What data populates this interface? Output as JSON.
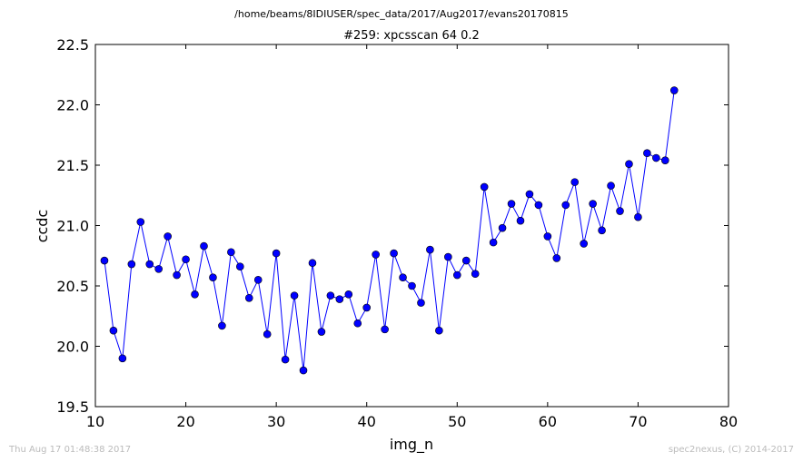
{
  "figure": {
    "suptitle": "/home/beams/8IDIUSER/spec_data/2017/Aug2017/evans20170815",
    "timestamp": "Thu Aug 17 01:48:38 2017",
    "credit": "spec2nexus, (C) 2014-2017"
  },
  "colors": {
    "line": "#0000ff",
    "marker": "#0000ff",
    "axes": "#000000",
    "footer": "#bbbbbb"
  },
  "chart_data": {
    "type": "line",
    "title": "#259: xpcsscan 64 0.2",
    "xlabel": "img_n",
    "ylabel": "ccdc",
    "xlim": [
      10,
      80
    ],
    "ylim": [
      19.5,
      22.5
    ],
    "xticks": [
      10,
      20,
      30,
      40,
      50,
      60,
      70,
      80
    ],
    "yticks": [
      19.5,
      20.0,
      20.5,
      21.0,
      21.5,
      22.0,
      22.5
    ],
    "xtick_labels": [
      "10",
      "20",
      "30",
      "40",
      "50",
      "60",
      "70",
      "80"
    ],
    "ytick_labels": [
      "19.5",
      "20.0",
      "20.5",
      "21.0",
      "21.5",
      "22.0",
      "22.5"
    ],
    "grid": false,
    "marker": "circle",
    "x": [
      11,
      12,
      13,
      14,
      15,
      16,
      17,
      18,
      19,
      20,
      21,
      22,
      23,
      24,
      25,
      26,
      27,
      28,
      29,
      30,
      31,
      32,
      33,
      34,
      35,
      36,
      37,
      38,
      39,
      40,
      41,
      42,
      43,
      44,
      45,
      46,
      47,
      48,
      49,
      50,
      51,
      52,
      53,
      54,
      55,
      56,
      57,
      58,
      59,
      60,
      61,
      62,
      63,
      64,
      65,
      66,
      67,
      68,
      69,
      70,
      71,
      72,
      73,
      74
    ],
    "y": [
      20.71,
      20.13,
      19.9,
      20.68,
      21.03,
      20.68,
      20.64,
      20.91,
      20.59,
      20.72,
      20.43,
      20.83,
      20.57,
      20.17,
      20.78,
      20.66,
      20.4,
      20.55,
      20.1,
      20.77,
      19.89,
      20.42,
      19.8,
      20.69,
      20.12,
      20.42,
      20.39,
      20.43,
      20.19,
      20.32,
      20.76,
      20.14,
      20.77,
      20.57,
      20.5,
      20.36,
      20.8,
      20.13,
      20.74,
      20.59,
      20.71,
      20.6,
      21.32,
      20.86,
      20.98,
      21.18,
      21.04,
      21.26,
      21.17,
      20.91,
      20.73,
      21.17,
      21.36,
      20.85,
      21.18,
      20.96,
      21.33,
      21.12,
      21.51,
      21.07,
      21.6,
      21.56,
      21.54,
      22.12
    ]
  }
}
